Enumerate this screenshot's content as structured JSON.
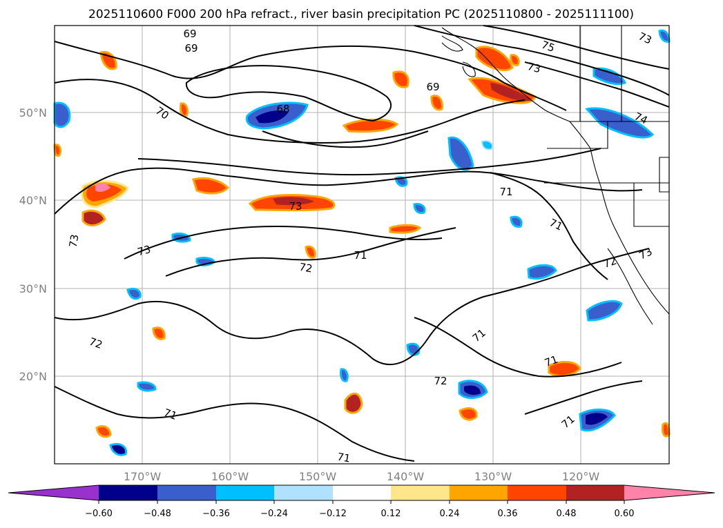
{
  "title": "2025110600 F000 200 hPa refract., river basin precipitation PC (2025110800 - 2025111100)",
  "lat_labels": [
    "50°N",
    "40°N",
    "30°N",
    "20°N"
  ],
  "lon_labels": [
    "170°W",
    "160°W",
    "150°W",
    "140°W",
    "130°W",
    "120°W"
  ],
  "colorbar": {
    "ticks": [
      "−0.60",
      "−0.48",
      "−0.36",
      "−0.24",
      "−0.12",
      "0.12",
      "0.24",
      "0.36",
      "0.48",
      "0.60"
    ],
    "colors": [
      "#9932cc",
      "#00008b",
      "#3a5fcd",
      "#00bfff",
      "#b0e2ff",
      "#ffffff",
      "#ffe68a",
      "#ffa500",
      "#ff4500",
      "#b22222",
      "#ff82ab"
    ]
  },
  "contour_labels": [
    "69",
    "69",
    "68",
    "69",
    "70",
    "75",
    "73",
    "73",
    "74",
    "71",
    "73",
    "73",
    "73",
    "71",
    "72",
    "71",
    "72",
    "72",
    "71",
    "71",
    "71",
    "71",
    "71",
    "72",
    "73"
  ],
  "chart_data": {
    "type": "map",
    "region": "North Pacific",
    "contour_variable": "200 hPa refractivity",
    "contour_levels": [
      68,
      69,
      70,
      71,
      72,
      73,
      74,
      75
    ],
    "fill_variable": "river basin precipitation PC",
    "fill_levels": [
      -0.6,
      -0.48,
      -0.36,
      -0.24,
      -0.12,
      0.12,
      0.24,
      0.36,
      0.48,
      0.6
    ],
    "lat_range": [
      10,
      60
    ],
    "lon_range": [
      -180,
      -110
    ],
    "gridlines": true
  }
}
